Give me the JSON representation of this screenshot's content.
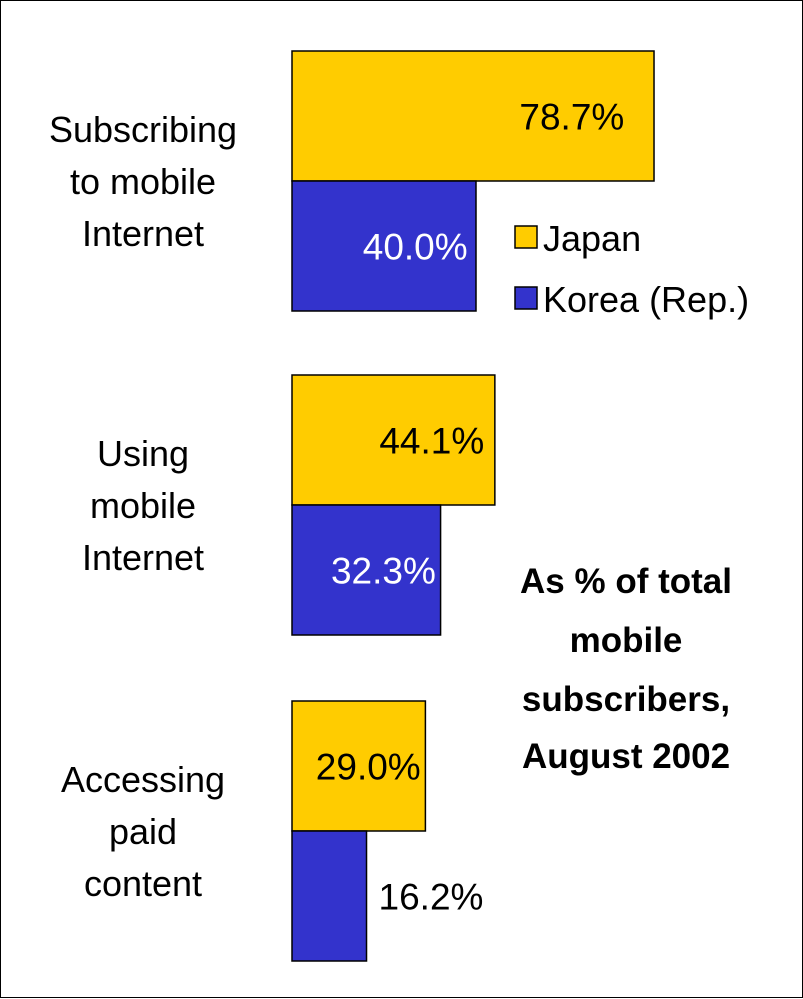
{
  "chart_data": {
    "type": "bar",
    "orientation": "horizontal",
    "categories": [
      [
        "Subscribing",
        "to mobile",
        "Internet"
      ],
      [
        "Using",
        "mobile",
        "Internet"
      ],
      [
        "Accessing",
        "paid",
        "content"
      ]
    ],
    "series": [
      {
        "name": "Japan",
        "values": [
          78.7,
          44.1,
          29.0
        ],
        "labels": [
          "78.7%",
          "44.1%",
          "29.0%"
        ],
        "color": "#FFCC00",
        "label_color": "#000000"
      },
      {
        "name": "Korea (Rep.)",
        "values": [
          40.0,
          32.3,
          16.2
        ],
        "labels": [
          "40.0%",
          "32.3%",
          "16.2%"
        ],
        "color": "#3333CC",
        "label_color": "#FFFFFF"
      }
    ],
    "legend_position": "right",
    "annotation": [
      "As % of total",
      "mobile",
      "subscribers,",
      "August 2002"
    ],
    "xlim": [
      0,
      100
    ],
    "grid": false,
    "axes_visible": false
  }
}
